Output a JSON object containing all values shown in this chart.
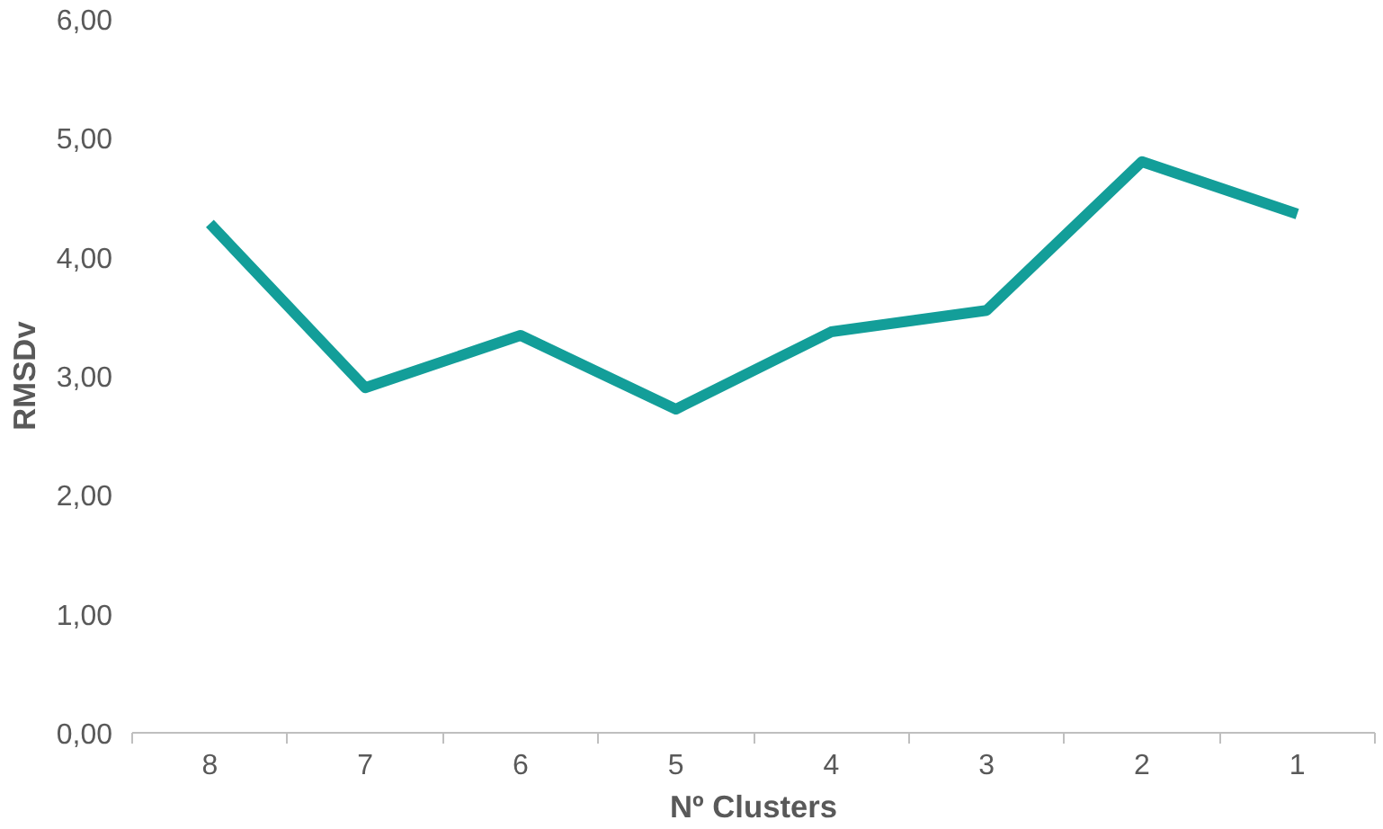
{
  "chart_data": {
    "type": "line",
    "xlabel": "Nº Clusters",
    "ylabel": "RMSDv",
    "categories": [
      "8",
      "7",
      "6",
      "5",
      "4",
      "3",
      "2",
      "1"
    ],
    "series": [
      {
        "color": "#139e99",
        "values": [
          4.28,
          2.9,
          3.34,
          2.72,
          3.37,
          3.55,
          4.8,
          4.36
        ]
      }
    ],
    "ylim": [
      0,
      6
    ],
    "yticks": [
      {
        "value": 0,
        "label": "0,00"
      },
      {
        "value": 1,
        "label": "1,00"
      },
      {
        "value": 2,
        "label": "2,00"
      },
      {
        "value": 3,
        "label": "3,00"
      },
      {
        "value": 4,
        "label": "4,00"
      },
      {
        "value": 5,
        "label": "5,00"
      },
      {
        "value": 6,
        "label": "6,00"
      }
    ],
    "grid": false,
    "marker": "none",
    "line_style": "solid"
  }
}
